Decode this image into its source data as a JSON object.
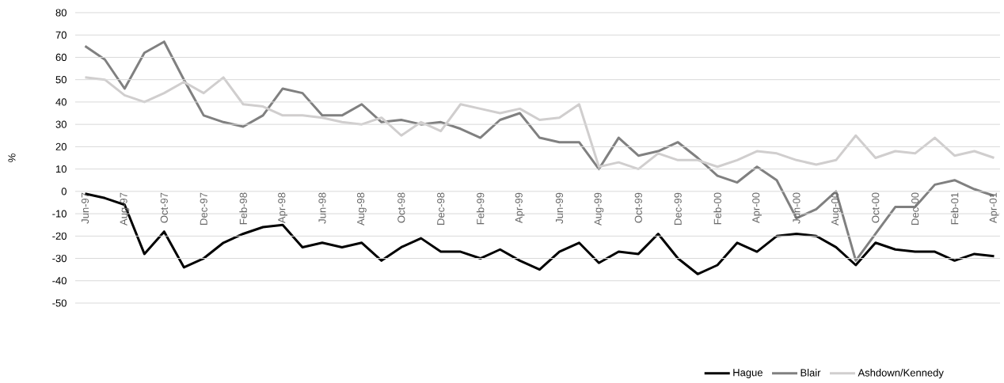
{
  "chart_data": {
    "type": "line",
    "ylabel": "%",
    "categories": [
      "Jun-97",
      null,
      "Aug-97",
      null,
      "Oct-97",
      null,
      "Dec-97",
      null,
      "Feb-98",
      null,
      "Apr-98",
      null,
      "Jun-98",
      null,
      "Aug-98",
      null,
      "Oct-98",
      null,
      "Dec-98",
      null,
      "Feb-99",
      null,
      "Apr-99",
      null,
      "Jun-99",
      null,
      "Aug-99",
      null,
      "Oct-99",
      null,
      "Dec-99",
      null,
      "Feb-00",
      null,
      "Apr-00",
      null,
      "Jun-00",
      null,
      "Aug-00",
      null,
      "Oct-00",
      null,
      "Dec-00",
      null,
      "Feb-01",
      null,
      "Apr-01"
    ],
    "series": [
      {
        "name": "Hague",
        "color": "#000000",
        "values": [
          -1,
          -3,
          -6,
          -28,
          -18,
          -34,
          -30,
          -23,
          -19,
          -16,
          -15,
          -25,
          -23,
          -25,
          -23,
          -31,
          -25,
          -21,
          -27,
          -27,
          -30,
          -26,
          -31,
          -35,
          -27,
          -23,
          -32,
          -27,
          -28,
          -19,
          -30,
          -37,
          -33,
          -23,
          -27,
          -20,
          -19,
          -20,
          -25,
          -33,
          -23,
          -26,
          -27,
          -27,
          -31,
          -28,
          -29
        ]
      },
      {
        "name": "Blair",
        "color": "#808080",
        "values": [
          65,
          59,
          46,
          62,
          67,
          50,
          34,
          31,
          29,
          34,
          46,
          44,
          34,
          34,
          39,
          31,
          32,
          30,
          31,
          28,
          24,
          32,
          35,
          24,
          22,
          22,
          10,
          24,
          16,
          18,
          22,
          15,
          7,
          4,
          11,
          5,
          -12,
          -8,
          0,
          -31,
          -19,
          -7,
          -7,
          3,
          5,
          1,
          -2
        ]
      },
      {
        "name": "Ashdown/Kennedy",
        "color": "#d0cece",
        "values": [
          51,
          50,
          43,
          40,
          44,
          49,
          44,
          51,
          39,
          38,
          34,
          34,
          33,
          31,
          30,
          33,
          25,
          31,
          27,
          39,
          37,
          35,
          37,
          32,
          33,
          39,
          11,
          13,
          10,
          17,
          14,
          14,
          11,
          14,
          18,
          17,
          14,
          12,
          14,
          25,
          15,
          18,
          17,
          24,
          16,
          18,
          15
        ]
      }
    ],
    "ylim": [
      -50,
      80
    ],
    "yticks": [
      -50,
      -40,
      -30,
      -20,
      -10,
      0,
      10,
      20,
      30,
      40,
      50,
      60,
      70,
      80
    ],
    "grid": "y",
    "legend": "bottom right",
    "marker": "none",
    "line_style": "solid"
  }
}
